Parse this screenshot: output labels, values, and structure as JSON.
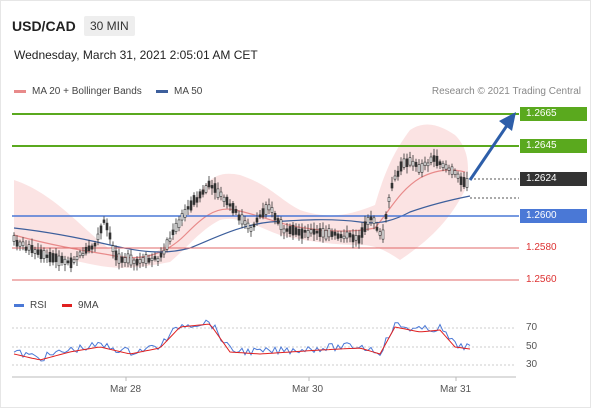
{
  "header": {
    "pair": "USD/CAD",
    "timeframe": "30 MIN",
    "date": "Wednesday, March 31, 2021 2:05:01 AM CET"
  },
  "legend": {
    "ma20": "MA 20 + Bollinger Bands",
    "ma50": "MA 50",
    "credit": "Research © 2021 Trading Central"
  },
  "levels": {
    "r2": "1.2665",
    "r1": "1.2645",
    "last": "1.2624",
    "s1": "1.2600",
    "s2": "1.2580",
    "s3": "1.2560"
  },
  "rsi": {
    "legend_rsi": "RSI",
    "legend_9ma": "9MA",
    "t70": "70",
    "t50": "50",
    "t30": "30"
  },
  "xaxis": {
    "t1": "Mar 28",
    "t2": "Mar 30",
    "t3": "Mar 31"
  },
  "colors": {
    "green": "#5aa91e",
    "blue": "#4a78d6",
    "red": "#d9534f",
    "dark": "#333333",
    "ma20": "#e88a8a",
    "ma50": "#3d5f9c",
    "arrow": "#2d5ea9"
  }
}
